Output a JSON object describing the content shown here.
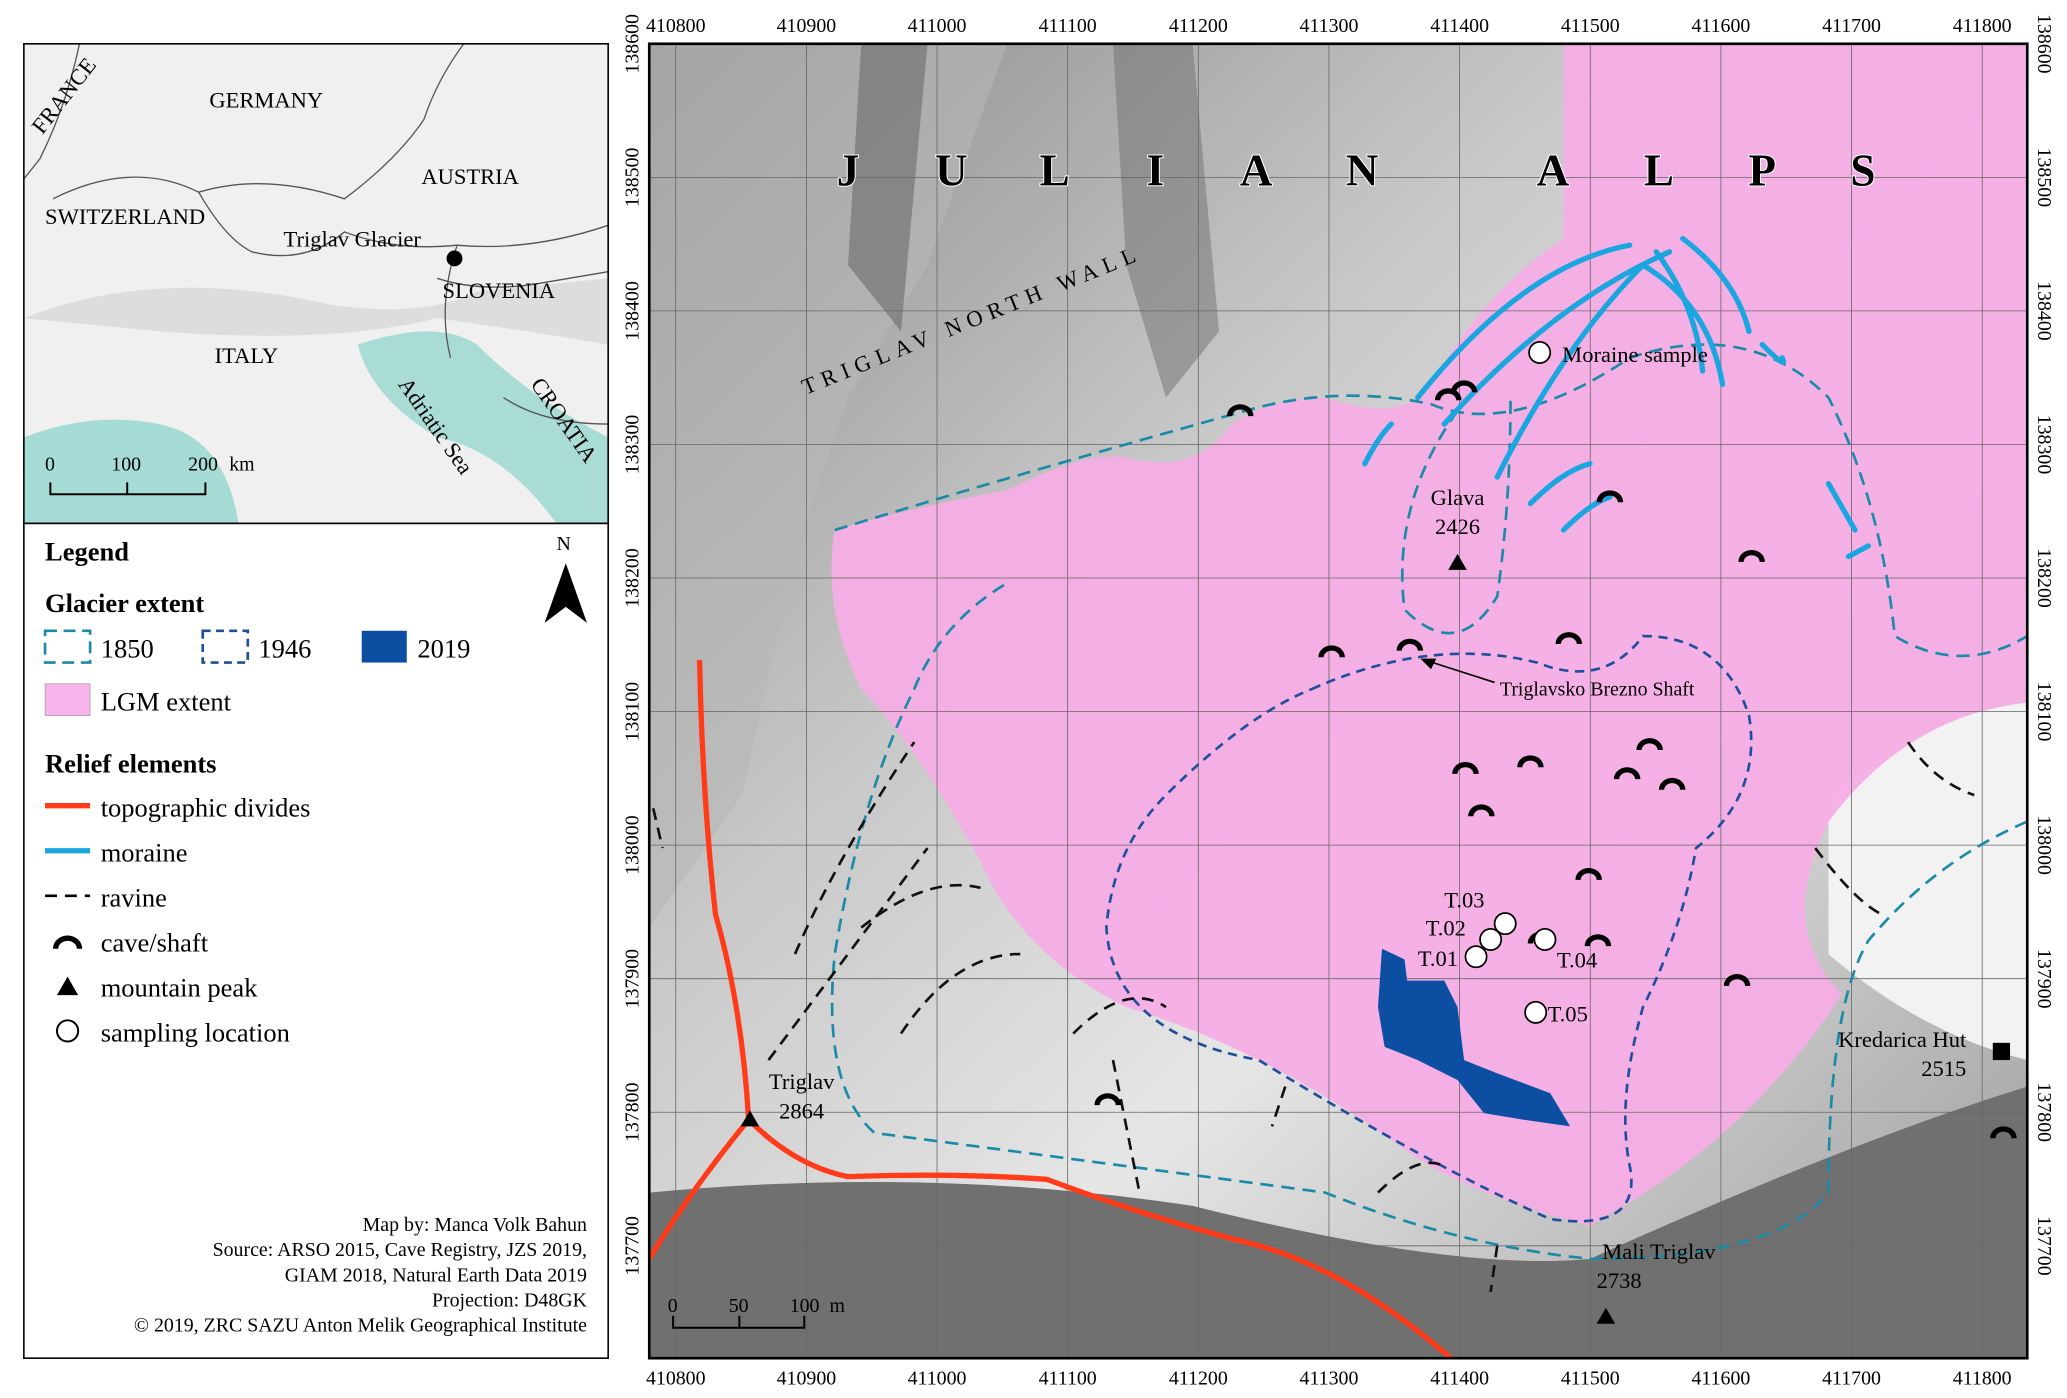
{
  "inset_map": {
    "countries": [
      "FRANCE",
      "GERMANY",
      "AUSTRIA",
      "SWITZERLAND",
      "SLOVENIA",
      "ITALY",
      "CROATIA"
    ],
    "sea_label": "Adriatic Sea",
    "site_label": "Triglav Glacier",
    "scale": {
      "ticks": [
        "0",
        "100",
        "200"
      ],
      "unit": "km"
    },
    "colors": {
      "sea": "#aadcd6",
      "land": "#f2f2f2"
    }
  },
  "legend": {
    "title": "Legend",
    "glacier_heading": "Glacier extent",
    "glacier_items": [
      {
        "label": "1850",
        "color": "#1a8aa8",
        "style": "dashed"
      },
      {
        "label": "1946",
        "color": "#1f4f9c",
        "style": "dashed"
      },
      {
        "label": "2019",
        "color": "#0b4ea2",
        "style": "fill"
      }
    ],
    "lgm": {
      "label": "LGM extent",
      "color": "#f7b4ea"
    },
    "relief_heading": "Relief elements",
    "relief_items": [
      {
        "label": "topographic divides",
        "icon": "red-line",
        "color": "#ff3b1a"
      },
      {
        "label": "moraine",
        "icon": "blue-line",
        "color": "#1ba6e0"
      },
      {
        "label": "ravine",
        "icon": "dashed-line",
        "color": "#000000"
      },
      {
        "label": "cave/shaft",
        "icon": "arc-icon",
        "color": "#000000"
      },
      {
        "label": "mountain peak",
        "icon": "triangle-icon",
        "color": "#000000"
      },
      {
        "label": "sampling location",
        "icon": "circle-icon",
        "color": "#000000"
      }
    ],
    "north": "N",
    "credits": [
      "Map by: Manca Volk Bahun",
      "Source: ARSO 2015, Cave Registry, JZS 2019,",
      "GIAM 2018, Natural Earth Data 2019",
      "Projection: D48GK",
      "© 2019, ZRC SAZU Anton Melik Geographical Institute"
    ]
  },
  "main_map": {
    "x_ticks": [
      410800,
      410900,
      411000,
      411100,
      411200,
      411300,
      411400,
      411500,
      411600,
      411700,
      411800
    ],
    "y_ticks": [
      138600,
      138500,
      138400,
      138300,
      138200,
      138100,
      138000,
      137900,
      137800,
      137700
    ],
    "region_label": [
      "J",
      "U",
      "L",
      "I",
      "A",
      "N",
      "A",
      "L",
      "P",
      "S"
    ],
    "wall_label": "TRIGLAV NORTH WALL",
    "moraine_sample": "Moraine sample",
    "shaft_label": "Triglavsko Brezno Shaft",
    "peaks": [
      {
        "name": "Glava",
        "elev": "2426"
      },
      {
        "name": "Triglav",
        "elev": "2864"
      },
      {
        "name": "Mali Triglav",
        "elev": "2738"
      }
    ],
    "hut": {
      "name": "Kredarica Hut",
      "elev": "2515"
    },
    "samples": [
      "T.01",
      "T.02",
      "T.03",
      "T.04",
      "T.05"
    ],
    "scale": {
      "ticks": [
        "0",
        "50",
        "100"
      ],
      "unit": "m"
    },
    "colors": {
      "lgm": "#f5aee6",
      "glacier2019": "#0b4ea2",
      "moraine": "#1ba6e0",
      "divide": "#ff3b1a",
      "g1850": "#1a8aa8",
      "g1946": "#1f4f9c"
    }
  }
}
